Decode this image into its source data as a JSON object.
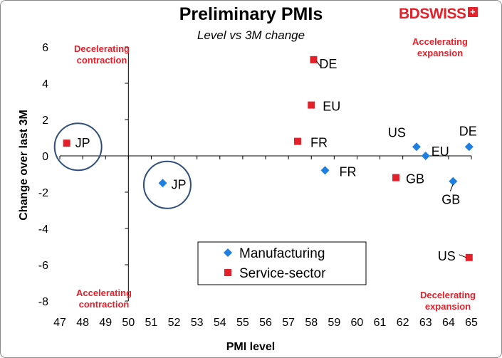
{
  "chart_data": {
    "type": "scatter",
    "title": "Preliminary PMIs",
    "subtitle": "Level vs 3M change",
    "xlabel": "PMI level",
    "ylabel": "Change over last 3M",
    "xlim": [
      47,
      65
    ],
    "ylim": [
      -8,
      6
    ],
    "x_ticks": [
      47,
      48,
      49,
      50,
      51,
      52,
      53,
      54,
      55,
      56,
      57,
      58,
      59,
      60,
      61,
      62,
      63,
      64,
      65
    ],
    "y_ticks": [
      6,
      4,
      2,
      0,
      -2,
      -4,
      -6,
      -8
    ],
    "axis_cross": {
      "x": 50,
      "y": 0
    },
    "series": [
      {
        "name": "Manufacturing",
        "marker": "diamond",
        "color": "#1e7fe0",
        "points": [
          {
            "label": "JP",
            "x": 51.5,
            "y": -1.5
          },
          {
            "label": "FR",
            "x": 58.6,
            "y": -0.8
          },
          {
            "label": "US",
            "x": 62.6,
            "y": 0.5
          },
          {
            "label": "EU",
            "x": 63.0,
            "y": 0.0
          },
          {
            "label": "DE",
            "x": 64.9,
            "y": 0.5
          },
          {
            "label": "GB",
            "x": 64.2,
            "y": -1.4
          }
        ]
      },
      {
        "name": "Service-sector",
        "marker": "square",
        "color": "#e4202a",
        "points": [
          {
            "label": "JP",
            "x": 47.3,
            "y": 0.7
          },
          {
            "label": "DE",
            "x": 58.1,
            "y": 5.3
          },
          {
            "label": "EU",
            "x": 58.0,
            "y": 2.8
          },
          {
            "label": "FR",
            "x": 57.4,
            "y": 0.8
          },
          {
            "label": "GB",
            "x": 61.7,
            "y": -1.2
          },
          {
            "label": "US",
            "x": 64.9,
            "y": -5.6
          }
        ]
      }
    ],
    "quadrant_labels": {
      "top_left": [
        "Decelerating",
        "contraction"
      ],
      "top_right": [
        "Accelerating",
        "expansion"
      ],
      "bottom_left": [
        "Accelerating",
        "contraction"
      ],
      "bottom_right": [
        "Decelerating",
        "expansion"
      ]
    },
    "circled_labels": [
      "JP"
    ],
    "legend": [
      "Manufacturing",
      "Service-sector"
    ]
  },
  "brand": {
    "name": "BDSWISS",
    "mark": "+"
  }
}
